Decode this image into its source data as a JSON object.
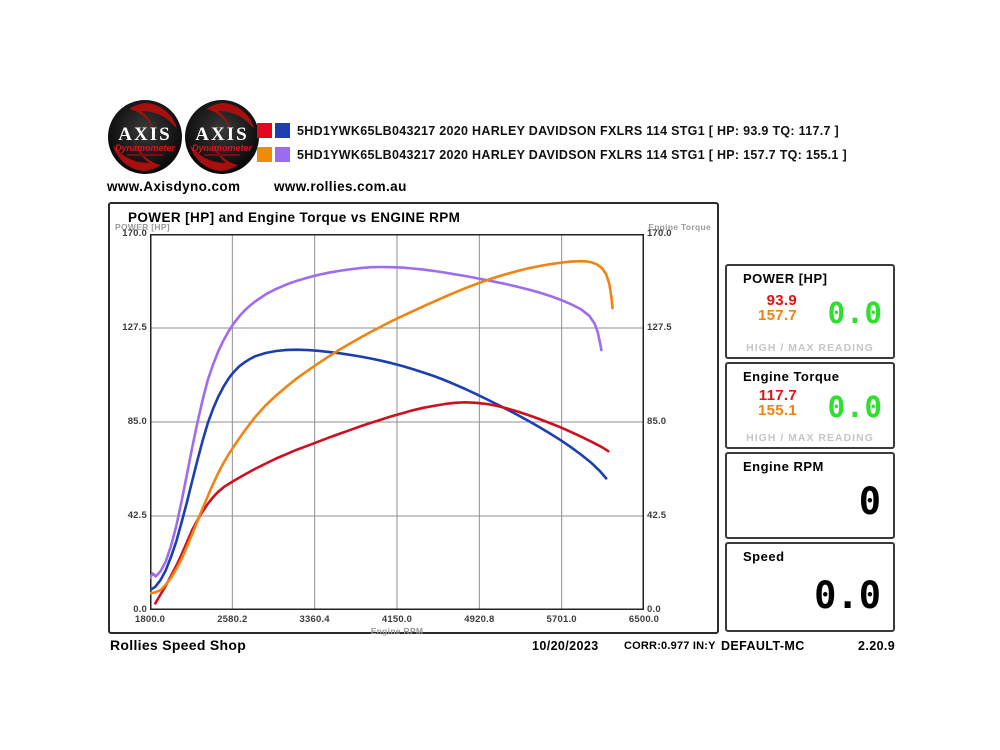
{
  "header": {
    "logo": {
      "title": "AXIS",
      "subtitle": "Dynamometer"
    },
    "links": {
      "axis": "www.Axisdyno.com",
      "rollies": "www.rollies.com.au"
    },
    "runs": [
      {
        "swatches": [
          "#e1071e",
          "#1f3cb5"
        ],
        "label": "5HD1YWK65LB043217 2020 HARLEY DAVIDSON FXLRS 114 STG1 [ HP: 93.9 TQ: 117.7 ]"
      },
      {
        "swatches": [
          "#f28a07",
          "#9b6cf0"
        ],
        "label": "5HD1YWK65LB043217 2020 HARLEY DAVIDSON FXLRS 114 STG1 [ HP: 157.7 TQ: 155.1 ]"
      }
    ]
  },
  "chart_data": {
    "type": "line",
    "title": "POWER [HP] and Engine Torque vs ENGINE RPM",
    "xlabel": "Engine RPM",
    "ylabel_left": "POWER [HP]",
    "ylabel_right": "Engine Torque",
    "xlim": [
      1800,
      6500
    ],
    "ylim": [
      0,
      170
    ],
    "xticks": [
      "1800.0",
      "2580.2",
      "3360.4",
      "4150.0",
      "4920.8",
      "5701.0",
      "6500.0"
    ],
    "yticks": [
      "170.0",
      "127.5",
      "85.0",
      "42.5",
      "0.0"
    ],
    "grid": true,
    "legend_position": "top-outside",
    "series": [
      {
        "name": "run1-torque",
        "unit": "lb-ft",
        "color": "#1c3fb0",
        "peak": 117.7,
        "points": [
          [
            1800,
            9
          ],
          [
            1850,
            10.5
          ],
          [
            1900,
            13.5
          ],
          [
            1950,
            18
          ],
          [
            2000,
            24
          ],
          [
            2050,
            31
          ],
          [
            2100,
            39.5
          ],
          [
            2150,
            48.5
          ],
          [
            2200,
            58
          ],
          [
            2250,
            67.5
          ],
          [
            2300,
            76.5
          ],
          [
            2350,
            84.5
          ],
          [
            2400,
            91
          ],
          [
            2450,
            96.5
          ],
          [
            2500,
            101
          ],
          [
            2550,
            104.8
          ],
          [
            2600,
            107.8
          ],
          [
            2650,
            110.2
          ],
          [
            2700,
            112
          ],
          [
            2750,
            113.5
          ],
          [
            2800,
            114.7
          ],
          [
            2900,
            116.2
          ],
          [
            3000,
            117.1
          ],
          [
            3100,
            117.6
          ],
          [
            3200,
            117.7
          ],
          [
            3300,
            117.5
          ],
          [
            3400,
            117.2
          ],
          [
            3500,
            116.7
          ],
          [
            3600,
            116.1
          ],
          [
            3700,
            115.4
          ],
          [
            3800,
            114.6
          ],
          [
            3900,
            113.7
          ],
          [
            4000,
            112.7
          ],
          [
            4100,
            111.6
          ],
          [
            4200,
            110.3
          ],
          [
            4300,
            108.9
          ],
          [
            4400,
            107.4
          ],
          [
            4500,
            105.8
          ],
          [
            4600,
            104
          ],
          [
            4700,
            102
          ],
          [
            4800,
            99.9
          ],
          [
            4900,
            97.7
          ],
          [
            5000,
            95.4
          ],
          [
            5100,
            93
          ],
          [
            5200,
            90.6
          ],
          [
            5300,
            88.1
          ],
          [
            5400,
            85.5
          ],
          [
            5500,
            82.8
          ],
          [
            5600,
            80
          ],
          [
            5700,
            77
          ],
          [
            5800,
            73.8
          ],
          [
            5900,
            70.3
          ],
          [
            6000,
            66.5
          ],
          [
            6080,
            62.8
          ],
          [
            6140,
            59.5
          ]
        ]
      },
      {
        "name": "run2-torque",
        "unit": "lb-ft",
        "color": "#9d6cf0",
        "peak": 155.1,
        "points": [
          [
            1800,
            14.5
          ],
          [
            1825,
            16.5
          ],
          [
            1855,
            15.2
          ],
          [
            1900,
            17.5
          ],
          [
            1950,
            22
          ],
          [
            2000,
            29
          ],
          [
            2050,
            38
          ],
          [
            2100,
            49
          ],
          [
            2150,
            61
          ],
          [
            2200,
            73
          ],
          [
            2250,
            84.5
          ],
          [
            2300,
            95
          ],
          [
            2350,
            104
          ],
          [
            2400,
            111
          ],
          [
            2450,
            117
          ],
          [
            2500,
            122
          ],
          [
            2550,
            126.2
          ],
          [
            2600,
            129.8
          ],
          [
            2650,
            132.8
          ],
          [
            2700,
            135.4
          ],
          [
            2750,
            137.6
          ],
          [
            2800,
            139.5
          ],
          [
            2900,
            142.7
          ],
          [
            3000,
            145.2
          ],
          [
            3100,
            147.2
          ],
          [
            3200,
            148.9
          ],
          [
            3300,
            150.3
          ],
          [
            3400,
            151.5
          ],
          [
            3500,
            152.5
          ],
          [
            3600,
            153.3
          ],
          [
            3700,
            154
          ],
          [
            3800,
            154.6
          ],
          [
            3900,
            155
          ],
          [
            4000,
            155.1
          ],
          [
            4100,
            155
          ],
          [
            4200,
            154.8
          ],
          [
            4300,
            154.4
          ],
          [
            4400,
            153.9
          ],
          [
            4500,
            153.3
          ],
          [
            4600,
            152.6
          ],
          [
            4700,
            151.8
          ],
          [
            4800,
            151
          ],
          [
            4900,
            150.1
          ],
          [
            5000,
            149.2
          ],
          [
            5100,
            148.2
          ],
          [
            5200,
            147.2
          ],
          [
            5300,
            146.1
          ],
          [
            5400,
            144.9
          ],
          [
            5500,
            143.6
          ],
          [
            5600,
            142.1
          ],
          [
            5700,
            140.4
          ],
          [
            5800,
            138.4
          ],
          [
            5900,
            136
          ],
          [
            5980,
            133
          ],
          [
            6030,
            129.5
          ],
          [
            6060,
            125.5
          ],
          [
            6080,
            121
          ],
          [
            6095,
            117.5
          ]
        ]
      },
      {
        "name": "run1-power",
        "unit": "HP",
        "color": "#cc1020",
        "peak": 93.9,
        "points": [
          [
            1850,
            3
          ],
          [
            1900,
            7
          ],
          [
            1950,
            11
          ],
          [
            2000,
            15.5
          ],
          [
            2050,
            20
          ],
          [
            2100,
            25
          ],
          [
            2150,
            30.5
          ],
          [
            2200,
            36
          ],
          [
            2250,
            40.5
          ],
          [
            2300,
            44.5
          ],
          [
            2350,
            48
          ],
          [
            2400,
            51
          ],
          [
            2450,
            53.5
          ],
          [
            2500,
            55.5
          ],
          [
            2550,
            57
          ],
          [
            2600,
            58.5
          ],
          [
            2700,
            61.2
          ],
          [
            2800,
            63.8
          ],
          [
            2900,
            66.2
          ],
          [
            3000,
            68.5
          ],
          [
            3100,
            70.5
          ],
          [
            3200,
            72.5
          ],
          [
            3300,
            74.3
          ],
          [
            3400,
            76.1
          ],
          [
            3500,
            77.9
          ],
          [
            3600,
            79.6
          ],
          [
            3700,
            81.3
          ],
          [
            3800,
            83
          ],
          [
            3900,
            84.6
          ],
          [
            4000,
            86.1
          ],
          [
            4100,
            87.6
          ],
          [
            4200,
            89
          ],
          [
            4300,
            90.3
          ],
          [
            4400,
            91.4
          ],
          [
            4500,
            92.3
          ],
          [
            4600,
            93.1
          ],
          [
            4700,
            93.7
          ],
          [
            4800,
            93.9
          ],
          [
            4900,
            93.7
          ],
          [
            5000,
            93.2
          ],
          [
            5100,
            92.3
          ],
          [
            5200,
            91.1
          ],
          [
            5300,
            89.7
          ],
          [
            5400,
            88.1
          ],
          [
            5500,
            86.4
          ],
          [
            5600,
            84.6
          ],
          [
            5700,
            82.7
          ],
          [
            5800,
            80.6
          ],
          [
            5900,
            78.4
          ],
          [
            6000,
            76.1
          ],
          [
            6100,
            73.6
          ],
          [
            6160,
            71.8
          ]
        ]
      },
      {
        "name": "run2-power",
        "unit": "HP",
        "color": "#f08312",
        "peak": 157.7,
        "points": [
          [
            1800,
            7.5
          ],
          [
            1850,
            8
          ],
          [
            1900,
            9
          ],
          [
            1950,
            11.5
          ],
          [
            2000,
            14.5
          ],
          [
            2050,
            18.5
          ],
          [
            2100,
            23
          ],
          [
            2150,
            28.5
          ],
          [
            2200,
            34
          ],
          [
            2250,
            40
          ],
          [
            2300,
            46
          ],
          [
            2350,
            51.5
          ],
          [
            2400,
            57
          ],
          [
            2450,
            62
          ],
          [
            2500,
            66.5
          ],
          [
            2550,
            70.5
          ],
          [
            2600,
            74.2
          ],
          [
            2700,
            81
          ],
          [
            2800,
            87.2
          ],
          [
            2900,
            92.5
          ],
          [
            3000,
            97
          ],
          [
            3100,
            101
          ],
          [
            3200,
            104.8
          ],
          [
            3300,
            108.2
          ],
          [
            3400,
            111.5
          ],
          [
            3500,
            114.6
          ],
          [
            3600,
            117.6
          ],
          [
            3700,
            120.4
          ],
          [
            3800,
            123.1
          ],
          [
            3900,
            125.7
          ],
          [
            4000,
            128.2
          ],
          [
            4100,
            130.6
          ],
          [
            4200,
            132.9
          ],
          [
            4300,
            135.1
          ],
          [
            4400,
            137.3
          ],
          [
            4500,
            139.4
          ],
          [
            4600,
            141.5
          ],
          [
            4700,
            143.5
          ],
          [
            4800,
            145.5
          ],
          [
            4900,
            147.3
          ],
          [
            5000,
            149
          ],
          [
            5100,
            150.6
          ],
          [
            5200,
            152
          ],
          [
            5300,
            153.3
          ],
          [
            5400,
            154.5
          ],
          [
            5500,
            155.5
          ],
          [
            5600,
            156.3
          ],
          [
            5700,
            157
          ],
          [
            5800,
            157.5
          ],
          [
            5900,
            157.7
          ],
          [
            5950,
            157.6
          ],
          [
            6000,
            157.2
          ],
          [
            6050,
            156.3
          ],
          [
            6100,
            154.6
          ],
          [
            6140,
            151.8
          ],
          [
            6170,
            147.5
          ],
          [
            6190,
            141.5
          ],
          [
            6200,
            136.5
          ]
        ]
      }
    ]
  },
  "panels": {
    "power": {
      "title": "POWER [HP]",
      "run1": "93.9",
      "run2": "157.7",
      "live": "0.0",
      "footer": "HIGH / MAX READING"
    },
    "torque": {
      "title": "Engine Torque",
      "run1": "117.7",
      "run2": "155.1",
      "live": "0.0",
      "footer": "HIGH / MAX READING"
    },
    "rpm": {
      "title": "Engine RPM",
      "live": "0"
    },
    "speed": {
      "title": "Speed",
      "live": "0.0"
    }
  },
  "statusbar": {
    "shop": "Rollies Speed Shop",
    "date": "10/20/2023",
    "correction": "CORR:0.977 IN:Y",
    "profile": "DEFAULT-MC",
    "version": "2.20.9"
  },
  "colors": {
    "run1_power": "#cc1020",
    "run1_torque": "#1c3fb0",
    "run2_power": "#f08312",
    "run2_torque": "#9d6cf0",
    "live_green": "#2fdf2f",
    "value_red": "#e01414",
    "value_orange": "#f2820a",
    "grid": "#8f8f8f",
    "frame": "#222222"
  }
}
